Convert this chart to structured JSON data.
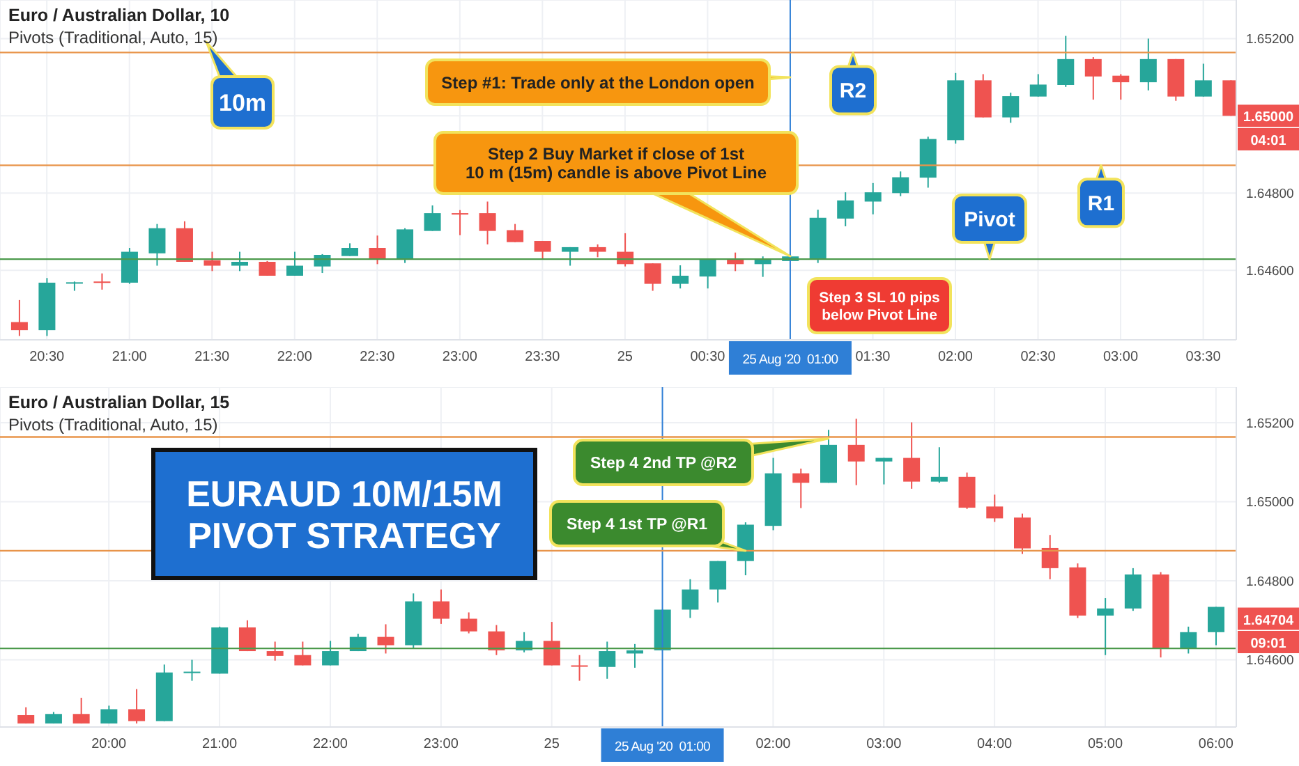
{
  "chart_data": [
    {
      "type": "candlestick",
      "title": "Euro / Australian Dollar, 10",
      "subtitle": "Pivots (Traditional, Auto, 15)",
      "x": [
        "2020-08-24T20:20",
        "2020-08-24T20:30",
        "2020-08-24T20:40",
        "2020-08-24T20:50",
        "2020-08-24T21:00",
        "2020-08-24T21:10",
        "2020-08-24T21:20",
        "2020-08-24T21:30",
        "2020-08-24T21:40",
        "2020-08-24T21:50",
        "2020-08-24T22:00",
        "2020-08-24T22:10",
        "2020-08-24T22:20",
        "2020-08-24T22:30",
        "2020-08-24T22:40",
        "2020-08-24T22:50",
        "2020-08-24T23:00",
        "2020-08-24T23:10",
        "2020-08-24T23:20",
        "2020-08-24T23:30",
        "2020-08-24T23:40",
        "2020-08-24T23:50",
        "2020-08-25T00:00",
        "2020-08-25T00:10",
        "2020-08-25T00:20",
        "2020-08-25T00:30",
        "2020-08-25T00:40",
        "2020-08-25T00:50",
        "2020-08-25T01:00",
        "2020-08-25T01:10",
        "2020-08-25T01:20",
        "2020-08-25T01:30",
        "2020-08-25T01:40",
        "2020-08-25T01:50",
        "2020-08-25T02:00",
        "2020-08-25T02:10",
        "2020-08-25T02:20",
        "2020-08-25T02:30",
        "2020-08-25T02:40",
        "2020-08-25T02:50",
        "2020-08-25T03:00",
        "2020-08-25T03:10",
        "2020-08-25T03:20",
        "2020-08-25T03:30",
        "2020-08-25T03:40"
      ],
      "ohlc": [
        [
          1.64466,
          1.64523,
          1.6443,
          1.64445
        ],
        [
          1.64445,
          1.6458,
          1.6443,
          1.64568
        ],
        [
          1.64567,
          1.64571,
          1.64547,
          1.64569
        ],
        [
          1.64571,
          1.64592,
          1.6455,
          1.64569
        ],
        [
          1.64568,
          1.64658,
          1.64565,
          1.64648
        ],
        [
          1.64644,
          1.6472,
          1.64612,
          1.64709
        ],
        [
          1.64709,
          1.64727,
          1.64622,
          1.64622
        ],
        [
          1.64626,
          1.64648,
          1.64598,
          1.64612
        ],
        [
          1.64612,
          1.64648,
          1.64598,
          1.64622
        ],
        [
          1.64622,
          1.64624,
          1.64586,
          1.64586
        ],
        [
          1.64586,
          1.64648,
          1.64586,
          1.64612
        ],
        [
          1.6461,
          1.64642,
          1.64593,
          1.6464
        ],
        [
          1.64637,
          1.6467,
          1.64637,
          1.64658
        ],
        [
          1.64658,
          1.6469,
          1.64616,
          1.64628
        ],
        [
          1.64628,
          1.64709,
          1.64619,
          1.64706
        ],
        [
          1.64702,
          1.64768,
          1.64702,
          1.64748
        ],
        [
          1.64748,
          1.64756,
          1.64691,
          1.64746
        ],
        [
          1.64748,
          1.64778,
          1.64667,
          1.64702
        ],
        [
          1.64704,
          1.6472,
          1.64673,
          1.64673
        ],
        [
          1.64676,
          1.64676,
          1.64631,
          1.64648
        ],
        [
          1.64648,
          1.6466,
          1.64612,
          1.6466
        ],
        [
          1.6466,
          1.64667,
          1.64634,
          1.64648
        ],
        [
          1.64648,
          1.64696,
          1.6461,
          1.64616
        ],
        [
          1.64618,
          1.64618,
          1.64547,
          1.64565
        ],
        [
          1.64565,
          1.64613,
          1.64553,
          1.64586
        ],
        [
          1.64584,
          1.64628,
          1.64553,
          1.64628
        ],
        [
          1.64628,
          1.64646,
          1.64598,
          1.64616
        ],
        [
          1.64616,
          1.64636,
          1.64583,
          1.64628
        ],
        [
          1.64624,
          1.6464,
          1.64624,
          1.64636
        ],
        [
          1.64631,
          1.64757,
          1.64619,
          1.64736
        ],
        [
          1.64734,
          1.64802,
          1.64714,
          1.64781
        ],
        [
          1.64778,
          1.64826,
          1.64745,
          1.64802
        ],
        [
          1.648,
          1.64856,
          1.64792,
          1.64841
        ],
        [
          1.6484,
          1.64946,
          1.64814,
          1.6494
        ],
        [
          1.64937,
          1.65111,
          1.64928,
          1.65092
        ],
        [
          1.65092,
          1.65108,
          1.64996,
          1.64996
        ],
        [
          1.64996,
          1.6506,
          1.64982,
          1.65051
        ],
        [
          1.6505,
          1.65108,
          1.6505,
          1.65081
        ],
        [
          1.6508,
          1.65207,
          1.65075,
          1.65147
        ],
        [
          1.65147,
          1.65152,
          1.65042,
          1.65102
        ],
        [
          1.65104,
          1.65108,
          1.65042,
          1.65087
        ],
        [
          1.65087,
          1.652,
          1.65066,
          1.65147
        ],
        [
          1.65147,
          1.65147,
          1.65039,
          1.6505
        ],
        [
          1.6505,
          1.65135,
          1.6505,
          1.65092
        ],
        [
          1.65092,
          1.65092,
          1.65,
          1.65
        ]
      ],
      "colors": [
        "#ef5350",
        "#26a69a",
        "#26a69a",
        "#ef5350",
        "#26a69a",
        "#26a69a",
        "#ef5350",
        "#ef5350",
        "#26a69a",
        "#ef5350",
        "#26a69a",
        "#26a69a",
        "#26a69a",
        "#ef5350",
        "#26a69a",
        "#26a69a",
        "#ef5350",
        "#ef5350",
        "#ef5350",
        "#ef5350",
        "#26a69a",
        "#ef5350",
        "#ef5350",
        "#ef5350",
        "#26a69a",
        "#26a69a",
        "#ef5350",
        "#26a69a",
        "#26a69a",
        "#26a69a",
        "#26a69a",
        "#26a69a",
        "#26a69a",
        "#26a69a",
        "#26a69a",
        "#ef5350",
        "#26a69a",
        "#26a69a",
        "#26a69a",
        "#ef5350",
        "#ef5350",
        "#26a69a",
        "#ef5350",
        "#26a69a",
        "#ef5350"
      ],
      "xlim": [
        "2020-08-24T20:13",
        "2020-08-25T03:42"
      ],
      "xticks": [
        {
          "value": "2020-08-24T20:30",
          "label": "20:30"
        },
        {
          "value": "2020-08-24T21:00",
          "label": "21:00"
        },
        {
          "value": "2020-08-24T21:30",
          "label": "21:30"
        },
        {
          "value": "2020-08-24T22:00",
          "label": "22:00"
        },
        {
          "value": "2020-08-24T22:30",
          "label": "22:30"
        },
        {
          "value": "2020-08-24T23:00",
          "label": "23:00"
        },
        {
          "value": "2020-08-24T23:30",
          "label": "23:30"
        },
        {
          "value": "2020-08-25T00:00",
          "label": "25"
        },
        {
          "value": "2020-08-25T00:30",
          "label": "00:30"
        },
        {
          "value": "2020-08-25T01:30",
          "label": "01:30"
        },
        {
          "value": "2020-08-25T02:00",
          "label": "02:00"
        },
        {
          "value": "2020-08-25T02:30",
          "label": "02:30"
        },
        {
          "value": "2020-08-25T03:00",
          "label": "03:00"
        },
        {
          "value": "2020-08-25T03:30",
          "label": "03:30"
        }
      ],
      "ylim": [
        1.6442,
        1.653
      ],
      "yticks": [
        {
          "value": 1.646,
          "label": "1.64600"
        },
        {
          "value": 1.648,
          "label": "1.64800"
        },
        {
          "value": 1.65,
          "label": null
        },
        {
          "value": 1.652,
          "label": "1.65200"
        }
      ],
      "grid": true,
      "ref_lines": [
        {
          "axis": "x",
          "value": "2020-08-25T01:00",
          "label": "25 Aug '20  01:00",
          "color": "#2f7fd6"
        },
        {
          "axis": "y",
          "value": 1.65164,
          "label": "R2",
          "color": "#e8944a"
        },
        {
          "axis": "y",
          "value": 1.64872,
          "label": "R1",
          "color": "#e8944a"
        },
        {
          "axis": "y",
          "value": 1.64629,
          "label": "Pivot",
          "color": "#4c9a4c"
        }
      ],
      "annotations": [
        "10m",
        {
          "text": "Step #1: Trade only at the London open",
          "x": "2020-08-25T01:00",
          "y": 1.651
        },
        "Step 2 Buy Market if close of 1st\n10 m (15m) candle is above Pivot Line",
        "Step 3 SL 10 pips\nbelow Pivot Line",
        {
          "text": "1.65000",
          "x": "2020-08-25T03:40",
          "y": 1.65
        },
        "04:01"
      ]
    },
    {
      "type": "candlestick",
      "title": "Euro / Australian Dollar, 15",
      "subtitle": "Pivots (Traditional, Auto, 15)",
      "x": [
        "2020-08-24T19:15",
        "2020-08-24T19:30",
        "2020-08-24T19:45",
        "2020-08-24T20:00",
        "2020-08-24T20:15",
        "2020-08-24T20:30",
        "2020-08-24T20:45",
        "2020-08-24T21:00",
        "2020-08-24T21:15",
        "2020-08-24T21:30",
        "2020-08-24T21:45",
        "2020-08-24T22:00",
        "2020-08-24T22:15",
        "2020-08-24T22:30",
        "2020-08-24T22:45",
        "2020-08-24T23:00",
        "2020-08-24T23:15",
        "2020-08-24T23:30",
        "2020-08-24T23:45",
        "2020-08-25T00:00",
        "2020-08-25T00:15",
        "2020-08-25T00:30",
        "2020-08-25T00:45",
        "2020-08-25T01:00",
        "2020-08-25T01:15",
        "2020-08-25T01:30",
        "2020-08-25T01:45",
        "2020-08-25T02:00",
        "2020-08-25T02:15",
        "2020-08-25T02:30",
        "2020-08-25T02:45",
        "2020-08-25T03:00",
        "2020-08-25T03:15",
        "2020-08-25T03:30",
        "2020-08-25T03:45",
        "2020-08-25T04:00",
        "2020-08-25T04:15",
        "2020-08-25T04:30",
        "2020-08-25T04:45",
        "2020-08-25T05:00",
        "2020-08-25T05:15",
        "2020-08-25T05:30",
        "2020-08-25T05:45",
        "2020-08-25T06:00"
      ],
      "ohlc": [
        [
          1.6446,
          1.6448,
          1.64439,
          1.64439
        ],
        [
          1.64439,
          1.64468,
          1.64439,
          1.64463
        ],
        [
          1.64463,
          1.64504,
          1.64439,
          1.64439
        ],
        [
          1.64439,
          1.64484,
          1.64439,
          1.64475
        ],
        [
          1.64475,
          1.64526,
          1.64439,
          1.64445
        ],
        [
          1.64445,
          1.64588,
          1.64445,
          1.64568
        ],
        [
          1.64568,
          1.646,
          1.64547,
          1.6457
        ],
        [
          1.64565,
          1.64684,
          1.64565,
          1.64682
        ],
        [
          1.64682,
          1.647,
          1.64622,
          1.64622
        ],
        [
          1.64622,
          1.64646,
          1.64598,
          1.6461
        ],
        [
          1.64612,
          1.64646,
          1.64586,
          1.64586
        ],
        [
          1.64586,
          1.64648,
          1.64586,
          1.64622
        ],
        [
          1.64622,
          1.64666,
          1.64622,
          1.64658
        ],
        [
          1.64658,
          1.6469,
          1.64616,
          1.64637
        ],
        [
          1.64637,
          1.64768,
          1.64628,
          1.64748
        ],
        [
          1.64748,
          1.64778,
          1.64691,
          1.64704
        ],
        [
          1.64704,
          1.6472,
          1.64667,
          1.64672
        ],
        [
          1.64672,
          1.64688,
          1.64612,
          1.64624
        ],
        [
          1.64624,
          1.6467,
          1.64619,
          1.64648
        ],
        [
          1.64648,
          1.64696,
          1.64586,
          1.64586
        ],
        [
          1.64586,
          1.64612,
          1.64547,
          1.64583
        ],
        [
          1.64582,
          1.64646,
          1.64552,
          1.64622
        ],
        [
          1.64616,
          1.6464,
          1.6458,
          1.64624
        ],
        [
          1.64624,
          1.64727,
          1.64624,
          1.64727
        ],
        [
          1.64727,
          1.64804,
          1.64706,
          1.64778
        ],
        [
          1.64778,
          1.6485,
          1.64745,
          1.6485
        ],
        [
          1.6485,
          1.64948,
          1.64814,
          1.64942
        ],
        [
          1.64939,
          1.65111,
          1.64928,
          1.65072
        ],
        [
          1.65072,
          1.65084,
          1.64984,
          1.65048
        ],
        [
          1.65048,
          1.65182,
          1.65048,
          1.65144
        ],
        [
          1.65144,
          1.6521,
          1.65042,
          1.65102
        ],
        [
          1.65102,
          1.65111,
          1.65044,
          1.65111
        ],
        [
          1.65111,
          1.65201,
          1.65033,
          1.65051
        ],
        [
          1.65051,
          1.65138,
          1.65048,
          1.65063
        ],
        [
          1.65063,
          1.65074,
          1.64982,
          1.64985
        ],
        [
          1.64988,
          1.65018,
          1.64949,
          1.64958
        ],
        [
          1.6496,
          1.6497,
          1.64868,
          1.64882
        ],
        [
          1.64883,
          1.64916,
          1.64804,
          1.64832
        ],
        [
          1.64834,
          1.64844,
          1.64706,
          1.64712
        ],
        [
          1.64712,
          1.64756,
          1.64612,
          1.6473
        ],
        [
          1.6473,
          1.64832,
          1.64724,
          1.64816
        ],
        [
          1.64816,
          1.64822,
          1.64606,
          1.64628
        ],
        [
          1.64628,
          1.64684,
          1.64616,
          1.6467
        ],
        [
          1.6467,
          1.64734,
          1.64637,
          1.64734
        ]
      ],
      "colors": [
        "#ef5350",
        "#26a69a",
        "#ef5350",
        "#26a69a",
        "#ef5350",
        "#26a69a",
        "#26a69a",
        "#26a69a",
        "#ef5350",
        "#ef5350",
        "#ef5350",
        "#26a69a",
        "#26a69a",
        "#ef5350",
        "#26a69a",
        "#ef5350",
        "#ef5350",
        "#ef5350",
        "#26a69a",
        "#ef5350",
        "#ef5350",
        "#26a69a",
        "#26a69a",
        "#26a69a",
        "#26a69a",
        "#26a69a",
        "#26a69a",
        "#26a69a",
        "#ef5350",
        "#26a69a",
        "#ef5350",
        "#26a69a",
        "#ef5350",
        "#26a69a",
        "#ef5350",
        "#ef5350",
        "#ef5350",
        "#ef5350",
        "#ef5350",
        "#26a69a",
        "#26a69a",
        "#ef5350",
        "#26a69a",
        "#26a69a"
      ],
      "xlim": [
        "2020-08-24T19:01",
        "2020-08-25T06:11"
      ],
      "xticks": [
        {
          "value": "2020-08-24T20:00",
          "label": "20:00"
        },
        {
          "value": "2020-08-24T21:00",
          "label": "21:00"
        },
        {
          "value": "2020-08-24T22:00",
          "label": "22:00"
        },
        {
          "value": "2020-08-24T23:00",
          "label": "23:00"
        },
        {
          "value": "2020-08-25T00:00",
          "label": "25"
        },
        {
          "value": "2020-08-25T02:00",
          "label": "02:00"
        },
        {
          "value": "2020-08-25T03:00",
          "label": "03:00"
        },
        {
          "value": "2020-08-25T04:00",
          "label": "04:00"
        },
        {
          "value": "2020-08-25T05:00",
          "label": "05:00"
        },
        {
          "value": "2020-08-25T06:00",
          "label": "06:00"
        }
      ],
      "ylim": [
        1.6443,
        1.6529
      ],
      "yticks": [
        {
          "value": 1.646,
          "label": "1.64600"
        },
        {
          "value": 1.648,
          "label": "1.64800"
        },
        {
          "value": 1.65,
          "label": "1.65000"
        },
        {
          "value": 1.652,
          "label": "1.65200"
        }
      ],
      "grid": true,
      "ref_lines": [
        {
          "axis": "x",
          "value": "2020-08-25T01:00",
          "label": "25 Aug '20  01:00",
          "color": "#2f7fd6"
        },
        {
          "axis": "y",
          "value": 1.65164,
          "label": null,
          "color": "#e8944a"
        },
        {
          "axis": "y",
          "value": 1.64876,
          "label": null,
          "color": "#e8944a"
        },
        {
          "axis": "y",
          "value": 1.64629,
          "label": null,
          "color": "#4c9a4c"
        }
      ],
      "annotations": [
        "EURAUD 10M/15M\nPIVOT STRATEGY",
        {
          "text": "Step 4 2nd TP @R2",
          "x": "2020-08-25T02:30",
          "y": 1.6516
        },
        {
          "text": "Step 4 1st TP @R1",
          "x": "2020-08-25T01:45",
          "y": 1.64876
        },
        {
          "text": "1.64704",
          "x": "2020-08-25T06:00",
          "y": 1.64704
        },
        "09:01"
      ]
    }
  ]
}
